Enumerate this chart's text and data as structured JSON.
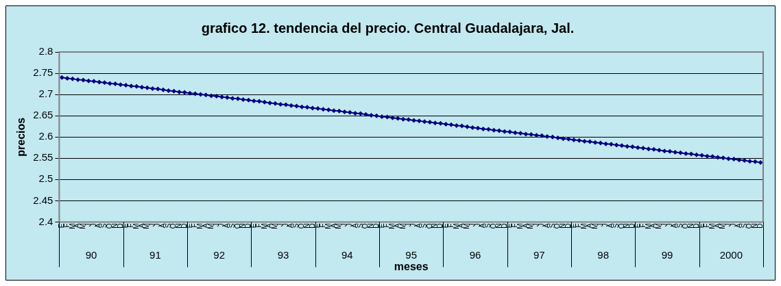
{
  "chart_data": {
    "type": "line",
    "title": "grafico 12. tendencia del precio. Central Guadalajara, Jal.",
    "xlabel": "meses",
    "ylabel": "precios",
    "categories": [
      "E",
      "F",
      "M",
      "A",
      "M",
      "J",
      "J",
      "A",
      "S",
      "O",
      "N",
      "D",
      "E",
      "F",
      "M",
      "A",
      "M",
      "J",
      "J",
      "A",
      "S",
      "O",
      "N",
      "D",
      "E",
      "F",
      "M",
      "A",
      "M",
      "J",
      "J",
      "A",
      "S",
      "O",
      "N",
      "D",
      "E",
      "F",
      "M",
      "A",
      "M",
      "J",
      "J",
      "A",
      "S",
      "O",
      "N",
      "D",
      "E",
      "F",
      "M",
      "A",
      "M",
      "J",
      "J",
      "A",
      "S",
      "O",
      "N",
      "D",
      "E",
      "F",
      "M",
      "A",
      "M",
      "J",
      "J",
      "A",
      "S",
      "O",
      "N",
      "D",
      "E",
      "F",
      "M",
      "A",
      "M",
      "J",
      "J",
      "A",
      "S",
      "O",
      "N",
      "D",
      "E",
      "F",
      "M",
      "A",
      "M",
      "J",
      "J",
      "A",
      "S",
      "O",
      "N",
      "D",
      "E",
      "F",
      "M",
      "A",
      "M",
      "J",
      "J",
      "A",
      "S",
      "O",
      "N",
      "D",
      "E",
      "F",
      "M",
      "A",
      "M",
      "J",
      "J",
      "A",
      "S",
      "O",
      "N",
      "D",
      "E",
      "F",
      "M",
      "A",
      "M",
      "J",
      "J",
      "A",
      "S",
      "O",
      "N",
      "D"
    ],
    "annotations": [
      "90",
      "91",
      "92",
      "93",
      "94",
      "95",
      "96",
      "97",
      "98",
      "99",
      "2000"
    ],
    "series": [
      {
        "color": "#000080",
        "values": [
          2.74,
          2.738,
          2.737,
          2.735,
          2.734,
          2.732,
          2.731,
          2.729,
          2.728,
          2.726,
          2.725,
          2.723,
          2.722,
          2.72,
          2.719,
          2.717,
          2.716,
          2.714,
          2.713,
          2.711,
          2.709,
          2.708,
          2.706,
          2.705,
          2.703,
          2.702,
          2.7,
          2.699,
          2.697,
          2.696,
          2.694,
          2.693,
          2.691,
          2.69,
          2.688,
          2.687,
          2.685,
          2.684,
          2.682,
          2.68,
          2.679,
          2.677,
          2.676,
          2.674,
          2.673,
          2.671,
          2.67,
          2.668,
          2.667,
          2.665,
          2.664,
          2.662,
          2.661,
          2.659,
          2.658,
          2.656,
          2.655,
          2.653,
          2.651,
          2.65,
          2.648,
          2.647,
          2.645,
          2.644,
          2.642,
          2.641,
          2.639,
          2.638,
          2.636,
          2.635,
          2.633,
          2.632,
          2.63,
          2.629,
          2.627,
          2.626,
          2.624,
          2.622,
          2.621,
          2.619,
          2.618,
          2.616,
          2.615,
          2.613,
          2.612,
          2.61,
          2.609,
          2.607,
          2.606,
          2.604,
          2.603,
          2.601,
          2.6,
          2.598,
          2.596,
          2.595,
          2.593,
          2.592,
          2.59,
          2.589,
          2.587,
          2.586,
          2.584,
          2.583,
          2.581,
          2.58,
          2.578,
          2.577,
          2.575,
          2.574,
          2.572,
          2.571,
          2.569,
          2.567,
          2.566,
          2.564,
          2.563,
          2.561,
          2.56,
          2.558,
          2.557,
          2.555,
          2.554,
          2.552,
          2.551,
          2.549,
          2.548,
          2.546,
          2.545,
          2.543,
          2.542,
          2.54
        ]
      }
    ],
    "ylim": [
      2.4,
      2.8
    ],
    "yticks": [
      2.4,
      2.45,
      2.5,
      2.55,
      2.6,
      2.65,
      2.7,
      2.75,
      2.8
    ],
    "grid": "y",
    "legend": false,
    "marker": "diamond",
    "line_style": "solid"
  }
}
